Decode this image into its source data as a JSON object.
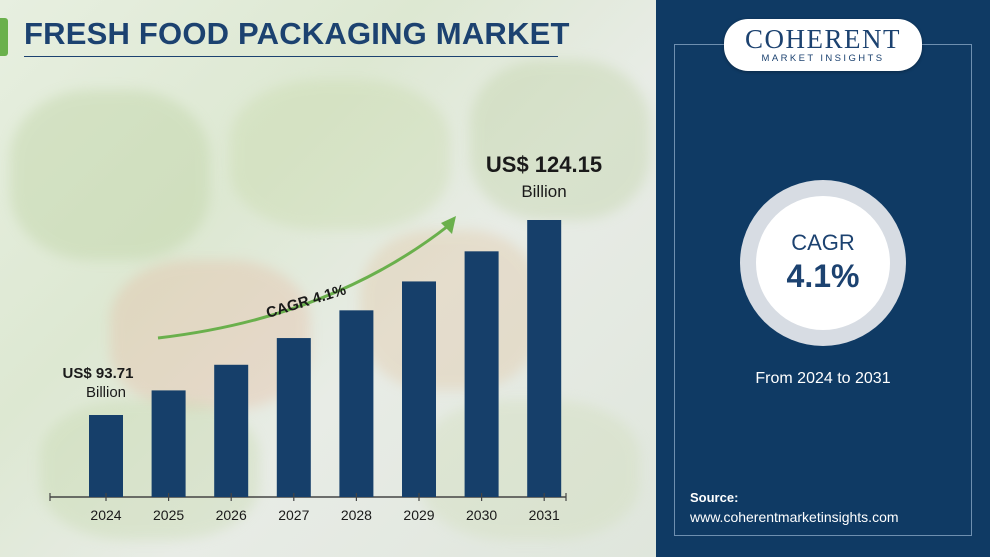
{
  "title": "FRESH FOOD PACKAGING MARKET",
  "colors": {
    "bar": "#163f6a",
    "accent": "#6ab04c",
    "panel": "#0f3a64",
    "arrow": "#6ab04c"
  },
  "chart_data": {
    "type": "bar",
    "categories": [
      "2024",
      "2025",
      "2026",
      "2027",
      "2028",
      "2029",
      "2030",
      "2031"
    ],
    "values": [
      93.71,
      97.55,
      101.55,
      105.72,
      110.05,
      114.56,
      119.26,
      124.15
    ],
    "ylim": [
      80,
      130
    ],
    "start_annotation": {
      "value": "US$ 93.71",
      "unit": "Billion"
    },
    "end_annotation": {
      "value": "US$ 124.15",
      "unit": "Billion"
    },
    "growth_label": "CAGR 4.1%"
  },
  "logo": {
    "main": "COHERENT",
    "sub": "MARKET INSIGHTS"
  },
  "cagr": {
    "label": "CAGR",
    "value": "4.1%"
  },
  "period": "From 2024 to 2031",
  "source": {
    "label": "Source:",
    "url": "www.coherentmarketinsights.com"
  }
}
